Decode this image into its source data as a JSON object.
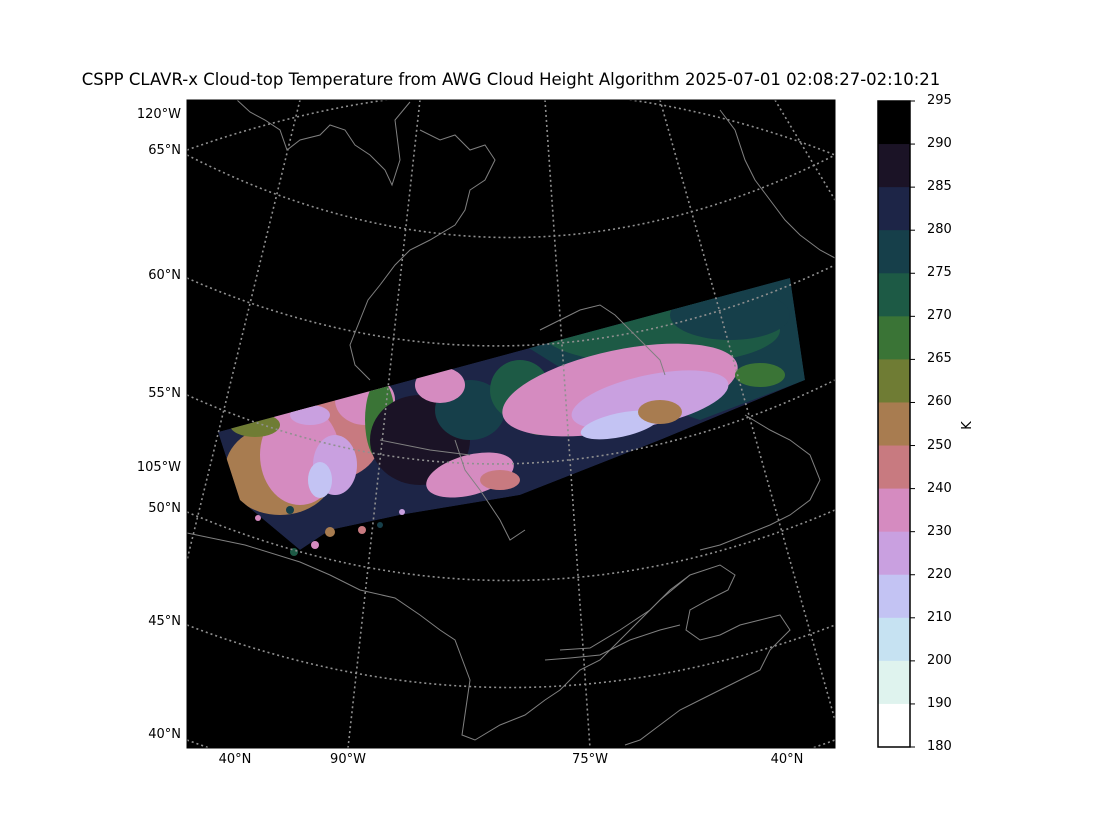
{
  "title": "CSPP CLAVR-x Cloud-top Temperature from AWG Cloud Height Algorithm 2025-07-01 02:08:27-02:10:21",
  "left_labels": [
    "120°W",
    "65°N",
    "60°N",
    "55°N",
    "105°W",
    "50°N",
    "45°N",
    "40°N"
  ],
  "bottom_labels": [
    "40°N",
    "90°W",
    "75°W",
    "40°N"
  ],
  "colorbar": {
    "unit": "K",
    "ticks": [
      "295",
      "290",
      "285",
      "280",
      "275",
      "270",
      "265",
      "260",
      "250",
      "240",
      "230",
      "220",
      "210",
      "200",
      "190",
      "180"
    ],
    "colors": [
      "#000000",
      "#1b1326",
      "#1d2547",
      "#163f4a",
      "#1d5a45",
      "#3a7436",
      "#6f7c34",
      "#a87c50",
      "#c87a80",
      "#d58bc0",
      "#c9a0e0",
      "#c3c3f3",
      "#c6e2f2",
      "#dff3ee",
      "#ffffff"
    ]
  },
  "map_colors": {
    "background": "#000000",
    "coast": "#808080",
    "grid": "#909090"
  }
}
